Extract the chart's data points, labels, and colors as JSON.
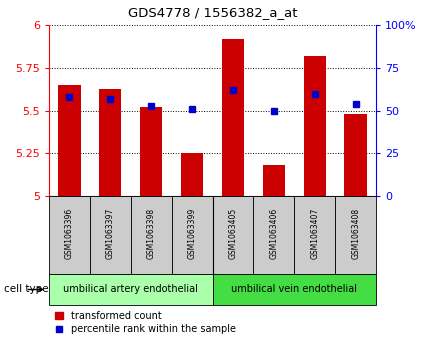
{
  "title": "GDS4778 / 1556382_a_at",
  "samples": [
    "GSM1063396",
    "GSM1063397",
    "GSM1063398",
    "GSM1063399",
    "GSM1063405",
    "GSM1063406",
    "GSM1063407",
    "GSM1063408"
  ],
  "red_values": [
    5.65,
    5.63,
    5.52,
    5.25,
    5.92,
    5.18,
    5.82,
    5.48
  ],
  "blue_values": [
    58,
    57,
    53,
    51,
    62,
    50,
    60,
    54
  ],
  "ylim_left": [
    5,
    6
  ],
  "ylim_right": [
    0,
    100
  ],
  "yticks_left": [
    5,
    5.25,
    5.5,
    5.75,
    6
  ],
  "yticks_right": [
    0,
    25,
    50,
    75,
    100
  ],
  "ytick_labels_right": [
    "0",
    "25",
    "50",
    "75",
    "100%"
  ],
  "bar_color": "#cc0000",
  "dot_color": "#0000cc",
  "group1_label": "umbilical artery endothelial",
  "group2_label": "umbilical vein endothelial",
  "cell_type_label": "cell type",
  "legend_red": "transformed count",
  "legend_blue": "percentile rank within the sample",
  "bar_width": 0.55,
  "base_value": 5.0,
  "group_color1": "#aaffaa",
  "group_color2": "#44dd44",
  "sample_bg": "#cccccc"
}
